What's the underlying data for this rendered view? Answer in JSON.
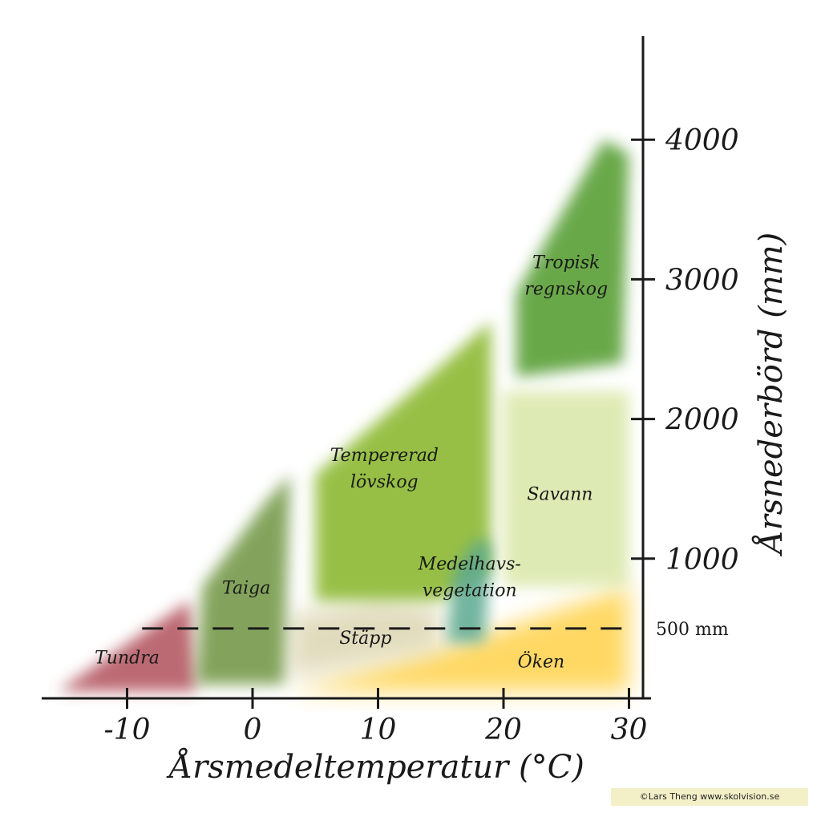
{
  "chart_data": {
    "type": "area",
    "xlabel": "Årsmedeltemperatur (°C)",
    "ylabel": "Årsnederbörd (mm)",
    "x_ticks": [
      "-10",
      "0",
      "10",
      "20",
      "30"
    ],
    "y_ticks": [
      "1000",
      "2000",
      "3000",
      "4000"
    ],
    "xlim": [
      -16,
      31
    ],
    "ylim": [
      0,
      4700
    ],
    "reference_line": {
      "value": 500,
      "label": "500 mm",
      "style": "dashed"
    },
    "biomes": [
      {
        "name": "Tundra",
        "label_lines": [
          "Tundra"
        ],
        "color": "#b0505a",
        "polygon": [
          [
            -15.5,
            50
          ],
          [
            -5,
            700
          ],
          [
            -4.5,
            50
          ]
        ]
      },
      {
        "name": "Taiga",
        "label_lines": [
          "Taiga"
        ],
        "color": "#6e9440",
        "polygon": [
          [
            -4.5,
            100
          ],
          [
            -4,
            800
          ],
          [
            1,
            1400
          ],
          [
            3,
            1600
          ],
          [
            2.5,
            100
          ]
        ]
      },
      {
        "name": "Tempererad lövskog",
        "label_lines": [
          "Tempererad",
          "lövskog"
        ],
        "color": "#86b528",
        "polygon": [
          [
            5,
            700
          ],
          [
            5,
            1600
          ],
          [
            14,
            2300
          ],
          [
            19,
            2700
          ],
          [
            19,
            900
          ],
          [
            15,
            700
          ]
        ]
      },
      {
        "name": "Tropisk regnskog",
        "label_lines": [
          "Tropisk",
          "regnskog"
        ],
        "color": "#4f9a2a",
        "polygon": [
          [
            21,
            2300
          ],
          [
            21,
            2900
          ],
          [
            28,
            4000
          ],
          [
            30,
            3900
          ],
          [
            29.5,
            2400
          ]
        ]
      },
      {
        "name": "Savann",
        "label_lines": [
          "Savann"
        ],
        "color": "#d4e49c",
        "polygon": [
          [
            20,
            800
          ],
          [
            20,
            2200
          ],
          [
            30,
            2200
          ],
          [
            30,
            800
          ]
        ]
      },
      {
        "name": "Medelhavsvegetation",
        "label_lines": [
          "Medelhavs-",
          "vegetation"
        ],
        "color": "#5aa88f",
        "polygon": [
          [
            15.5,
            400
          ],
          [
            16,
            900
          ],
          [
            18,
            1150
          ],
          [
            19,
            1100
          ],
          [
            18.5,
            400
          ]
        ]
      },
      {
        "name": "Stäpp",
        "label_lines": [
          "Stäpp"
        ],
        "color": "#d8d0a8",
        "polygon": [
          [
            3,
            150
          ],
          [
            3,
            600
          ],
          [
            10,
            700
          ],
          [
            15,
            650
          ],
          [
            15,
            350
          ]
        ]
      },
      {
        "name": "Öken",
        "label_lines": [
          "Öken"
        ],
        "color": "#ffd24a",
        "polygon": [
          [
            3,
            50
          ],
          [
            30,
            50
          ],
          [
            30,
            800
          ],
          [
            20,
            500
          ],
          [
            15,
            350
          ]
        ]
      }
    ]
  },
  "credit": "©Lars Theng www.skolvision.se"
}
